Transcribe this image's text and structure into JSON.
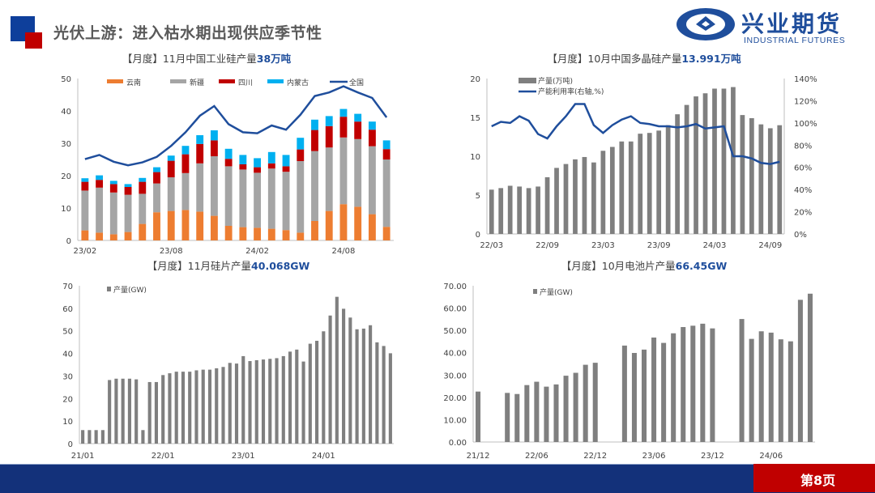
{
  "header": {
    "title": "光伏上游：进入枯水期出现供应季节性",
    "logo_cn": "兴业期货",
    "logo_en": "INDUSTRIAL FUTURES"
  },
  "footer": {
    "page": "第8页"
  },
  "colors": {
    "brand_blue": "#13317A",
    "brand_red": "#C00000",
    "accent": "#1F4E9C"
  },
  "chart_data": [
    {
      "type": "bar",
      "stacked": true,
      "title_prefix": "【月度】11月中国工业硅产量",
      "title_value": "38万吨",
      "yticks": [
        "0",
        "10",
        "20",
        "30",
        "40",
        "50"
      ],
      "ylim": [
        0,
        50
      ],
      "xticks": [
        {
          "i": 0,
          "label": "23/02"
        },
        {
          "i": 6,
          "label": "23/08"
        },
        {
          "i": 12,
          "label": "24/02"
        },
        {
          "i": 18,
          "label": "24/08"
        }
      ],
      "legend": "top",
      "series": [
        {
          "name": "云南",
          "color": "#ED7D31",
          "values": [
            3.1,
            2.4,
            1.9,
            2.6,
            5.1,
            8.7,
            9.1,
            9.4,
            8.9,
            7.6,
            4.5,
            4.1,
            3.9,
            3.6,
            3.2,
            2.4,
            6.0,
            9.1,
            11.2,
            10.4,
            8.1,
            4.2
          ]
        },
        {
          "name": "新疆",
          "color": "#A5A5A5",
          "values": [
            12.3,
            13.9,
            12.9,
            11.5,
            9.3,
            8.9,
            10.4,
            11.4,
            14.9,
            18.4,
            18.4,
            17.8,
            17.0,
            18.6,
            18.0,
            22.1,
            21.6,
            19.6,
            20.6,
            20.9,
            21.0,
            20.8
          ]
        },
        {
          "name": "四川",
          "color": "#C00000",
          "values": [
            2.7,
            2.4,
            2.6,
            2.4,
            3.7,
            3.5,
            5.1,
            5.8,
            6.0,
            4.9,
            2.3,
            1.6,
            1.7,
            1.6,
            1.7,
            3.6,
            6.5,
            6.6,
            6.4,
            5.4,
            5.1,
            3.2
          ]
        },
        {
          "name": "内蒙古",
          "color": "#00B0F0",
          "values": [
            1.1,
            1.4,
            1.0,
            0.9,
            1.2,
            1.5,
            1.6,
            2.6,
            2.7,
            3.1,
            3.1,
            2.9,
            2.8,
            3.5,
            3.5,
            3.6,
            3.2,
            3.1,
            2.4,
            2.4,
            2.5,
            2.7
          ]
        }
      ],
      "line": {
        "name": "全国",
        "color": "#1F4E9C",
        "values": [
          25.1,
          26.4,
          24.3,
          23.2,
          24.1,
          25.8,
          29.2,
          33.4,
          38.5,
          41.5,
          35.9,
          33.4,
          33.1,
          35.5,
          34.2,
          38.8,
          44.6,
          45.7,
          47.6,
          45.7,
          44.0,
          38.0
        ]
      }
    },
    {
      "type": "bar+line",
      "dual_axis": true,
      "title_prefix": "【月度】10月中国多晶硅产量",
      "title_value": "13.991万吨",
      "yticks": [
        "0",
        "5",
        "10",
        "15",
        "20"
      ],
      "ylim": [
        0,
        20
      ],
      "y2ticks": [
        "0%",
        "20%",
        "40%",
        "60%",
        "80%",
        "100%",
        "120%",
        "140%"
      ],
      "y2lim": [
        0,
        140
      ],
      "xticks": [
        {
          "i": 0,
          "label": "22/03"
        },
        {
          "i": 6,
          "label": "22/09"
        },
        {
          "i": 12,
          "label": "23/03"
        },
        {
          "i": 18,
          "label": "23/09"
        },
        {
          "i": 24,
          "label": "24/03"
        },
        {
          "i": 30,
          "label": "24/09"
        }
      ],
      "legend": "top-left",
      "series": [
        {
          "name": "产量(万吨)",
          "color": "#7F7F7F",
          "values": [
            5.7,
            5.9,
            6.2,
            6.1,
            5.9,
            6.1,
            7.3,
            8.5,
            9.0,
            9.6,
            9.9,
            9.2,
            10.7,
            11.2,
            11.9,
            11.9,
            12.9,
            13.0,
            13.3,
            14.0,
            15.4,
            16.6,
            17.7,
            18.1,
            18.7,
            18.7,
            18.9,
            15.3,
            14.9,
            14.1,
            13.6,
            13.991
          ]
        }
      ],
      "line": {
        "name": "产能利用率(右轴,%)",
        "color": "#1F4E9C",
        "values": [
          97,
          101,
          100,
          106,
          102,
          90,
          86,
          97,
          106,
          117,
          117,
          98,
          91,
          98,
          103,
          106,
          100,
          99,
          97,
          97,
          96,
          97,
          99,
          95,
          96,
          97,
          70,
          70,
          68,
          64,
          63,
          65
        ]
      }
    },
    {
      "type": "bar",
      "title_prefix": "【月度】11月硅片产量",
      "title_value": "40.068GW",
      "yticks": [
        "0",
        "10",
        "20",
        "30",
        "40",
        "50",
        "60",
        "70"
      ],
      "ylim": [
        0,
        70
      ],
      "xticks": [
        {
          "i": 0,
          "label": "21/01"
        },
        {
          "i": 12,
          "label": "22/01"
        },
        {
          "i": 24,
          "label": "23/01"
        },
        {
          "i": 36,
          "label": "24/01"
        }
      ],
      "legend": "top-left",
      "series": [
        {
          "name": "产量(GW)",
          "color": "#7F7F7F",
          "values": [
            6.0,
            6.0,
            6.0,
            6.0,
            28.2,
            28.8,
            28.8,
            28.8,
            28.5,
            6.0,
            27.3,
            27.3,
            30.4,
            31.2,
            31.9,
            31.9,
            31.9,
            32.5,
            32.8,
            32.8,
            33.4,
            34.0,
            35.8,
            35.5,
            38.8,
            36.6,
            37.0,
            37.3,
            37.6,
            37.9,
            38.8,
            40.8,
            41.7,
            36.4,
            44.3,
            45.6,
            49.8,
            56.8,
            65.1,
            59.8,
            55.9,
            50.7,
            51.0,
            52.5,
            44.9,
            43.3,
            40.068
          ]
        }
      ]
    },
    {
      "type": "bar",
      "title_prefix": "【月度】10月电池片产量",
      "title_value": "66.45GW",
      "yticks": [
        "0.00",
        "10.00",
        "20.00",
        "30.00",
        "40.00",
        "50.00",
        "60.00",
        "70.00"
      ],
      "ylim": [
        0,
        70
      ],
      "xticks": [
        {
          "i": 0,
          "label": "21/12"
        },
        {
          "i": 6,
          "label": "22/06"
        },
        {
          "i": 12,
          "label": "22/12"
        },
        {
          "i": 18,
          "label": "23/06"
        },
        {
          "i": 24,
          "label": "23/12"
        },
        {
          "i": 30,
          "label": "24/06"
        }
      ],
      "legend": "top-left",
      "series": [
        {
          "name": "产量(GW)",
          "color": "#7F7F7F",
          "values": [
            22.6,
            null,
            null,
            22.0,
            21.5,
            25.5,
            27.0,
            24.8,
            25.8,
            29.7,
            31.0,
            34.6,
            35.5,
            null,
            null,
            43.2,
            39.9,
            41.4,
            46.8,
            44.4,
            48.7,
            51.5,
            52.1,
            53.0,
            50.9,
            null,
            null,
            55.1,
            46.2,
            49.6,
            49.0,
            46.0,
            45.1,
            63.7,
            66.45
          ]
        }
      ]
    }
  ]
}
